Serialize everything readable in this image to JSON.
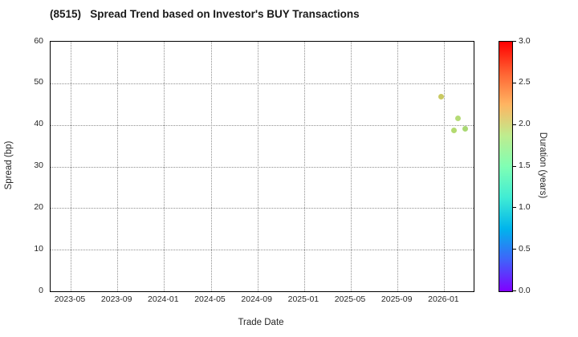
{
  "title": "(8515)   Spread Trend based on Investor's BUY Transactions",
  "chart_data": {
    "type": "scatter",
    "title": "(8515)   Spread Trend based on Investor's BUY Transactions",
    "xlabel": "Trade Date",
    "ylabel": "Spread (bp)",
    "grid": true,
    "grid_style": "dotted",
    "legend_position": "none",
    "x_axis": {
      "min": 2023.19,
      "max": 2026.21,
      "ticks": [
        {
          "label": "2023-05",
          "value": 2023.3333
        },
        {
          "label": "2023-09",
          "value": 2023.6667
        },
        {
          "label": "2024-01",
          "value": 2024.0
        },
        {
          "label": "2024-05",
          "value": 2024.3333
        },
        {
          "label": "2024-09",
          "value": 2024.6667
        },
        {
          "label": "2025-01",
          "value": 2025.0
        },
        {
          "label": "2025-05",
          "value": 2025.3333
        },
        {
          "label": "2025-09",
          "value": 2025.6667
        },
        {
          "label": "2026-01",
          "value": 2026.0
        }
      ]
    },
    "y_axis": {
      "min": 0,
      "max": 60,
      "ticks": [
        {
          "label": "0",
          "value": 0
        },
        {
          "label": "10",
          "value": 10
        },
        {
          "label": "20",
          "value": 20
        },
        {
          "label": "30",
          "value": 30
        },
        {
          "label": "40",
          "value": 40
        },
        {
          "label": "50",
          "value": 50
        },
        {
          "label": "60",
          "value": 60
        }
      ]
    },
    "points": [
      {
        "trade_date_approx": "2025-12",
        "x": 2025.98,
        "spread_bp": 46.8,
        "duration_years_est": 2.0,
        "color": "#c9c962"
      },
      {
        "trade_date_approx": "2026-02",
        "x": 2026.1,
        "spread_bp": 41.5,
        "duration_years_est": 1.85,
        "color": "#b5db76"
      },
      {
        "trade_date_approx": "2026-01",
        "x": 2026.07,
        "spread_bp": 38.7,
        "duration_years_est": 1.85,
        "color": "#b3da70"
      },
      {
        "trade_date_approx": "2026-02",
        "x": 2026.15,
        "spread_bp": 39.0,
        "duration_years_est": 1.8,
        "color": "#a9d873"
      }
    ],
    "colorbar": {
      "label": "Duration (years)",
      "min": 0.0,
      "max": 3.0,
      "ticks": [
        {
          "label": "0.0",
          "value": 0.0
        },
        {
          "label": "0.5",
          "value": 0.5
        },
        {
          "label": "1.0",
          "value": 1.0
        },
        {
          "label": "1.5",
          "value": 1.5
        },
        {
          "label": "2.0",
          "value": 2.0
        },
        {
          "label": "2.5",
          "value": 2.5
        },
        {
          "label": "3.0",
          "value": 3.0
        }
      ],
      "gradient_stops": [
        {
          "pos": 0.0,
          "color": "#8000ff"
        },
        {
          "pos": 0.125,
          "color": "#4062fa"
        },
        {
          "pos": 0.25,
          "color": "#00b4ec"
        },
        {
          "pos": 0.375,
          "color": "#40ecd4"
        },
        {
          "pos": 0.5,
          "color": "#80ffb4"
        },
        {
          "pos": 0.625,
          "color": "#bfec8e"
        },
        {
          "pos": 0.75,
          "color": "#ffb461"
        },
        {
          "pos": 0.875,
          "color": "#ff6232"
        },
        {
          "pos": 1.0,
          "color": "#ff0000"
        }
      ]
    },
    "colors": {
      "background": "#ffffff",
      "axis_border": "#000000",
      "grid": "#8f8f8f",
      "text": "#262626"
    }
  }
}
